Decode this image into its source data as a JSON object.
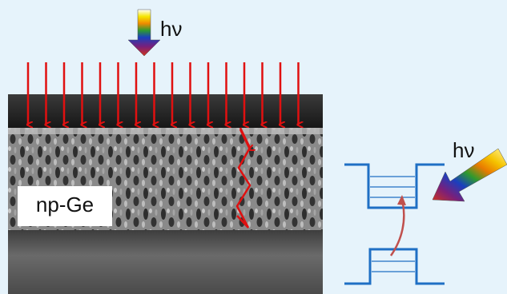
{
  "labels": {
    "top_photon": "hν",
    "material": "np-Ge",
    "side_photon": "hν"
  }
}
